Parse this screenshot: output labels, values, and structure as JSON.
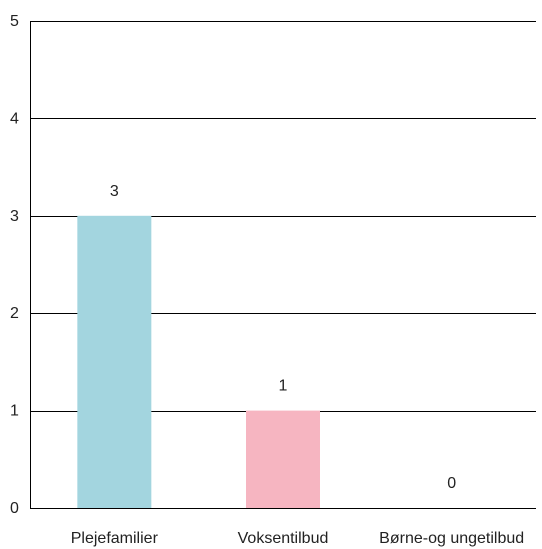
{
  "chart_data": {
    "type": "bar",
    "categories": [
      "Plejefamilier",
      "Voksentilbud",
      "Børne-og ungetilbud"
    ],
    "values": [
      3,
      1,
      0
    ],
    "colors": [
      "#a3d5df",
      "#f6b5c1",
      "#c9c9c9"
    ],
    "ylim": [
      0,
      5
    ],
    "yticks": [
      "0",
      "1",
      "2",
      "3",
      "4",
      "5"
    ],
    "data_labels": [
      "3",
      "1",
      "0"
    ],
    "grid": true,
    "legend": "none"
  }
}
